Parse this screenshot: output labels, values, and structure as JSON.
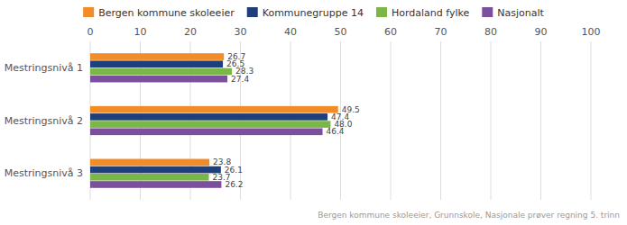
{
  "chart_data": {
    "type": "bar",
    "orientation": "horizontal",
    "categories": [
      "Mestringsnivå 1",
      "Mestringsnivå 2",
      "Mestringsnivå 3"
    ],
    "series": [
      {
        "name": "Bergen kommune skoleeier",
        "color": "#F28C28",
        "values": [
          26.7,
          49.5,
          23.8
        ]
      },
      {
        "name": "Kommunegruppe 14",
        "color": "#1F3F7A",
        "values": [
          26.5,
          47.4,
          26.1
        ]
      },
      {
        "name": "Hordaland fylke",
        "color": "#7AB648",
        "values": [
          28.3,
          48.0,
          23.7
        ],
        "value_labels": [
          "28.3",
          "48.0",
          "23.7"
        ]
      },
      {
        "name": "Nasjonalt",
        "color": "#7B4F9E",
        "values": [
          27.4,
          46.4,
          26.2
        ]
      }
    ],
    "xlim": [
      0,
      100
    ],
    "xticks": [
      0,
      10,
      20,
      30,
      40,
      50,
      60,
      70,
      80,
      90,
      100
    ],
    "grid": true,
    "data_labels": true,
    "legend": "top",
    "annotations": [
      "Bergen kommune skoleeier, Grunnskole, Nasjonale prøver regning 5. trinn"
    ]
  }
}
